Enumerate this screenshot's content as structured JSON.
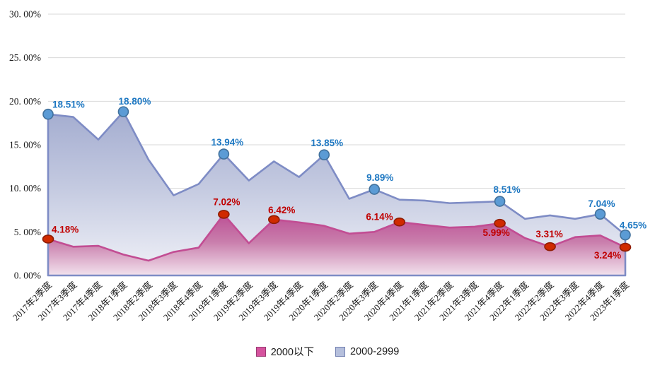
{
  "chart_data": {
    "type": "area",
    "categories": [
      "2017年2季度",
      "2017年3季度",
      "2017年4季度",
      "2018年1季度",
      "2018年2季度",
      "2018年3季度",
      "2018年4季度",
      "2019年1季度",
      "2019年2季度",
      "2019年3季度",
      "2019年4季度",
      "2020年1季度",
      "2020年2季度",
      "2020年3季度",
      "2020年4季度",
      "2021年1季度",
      "2021年2季度",
      "2021年3季度",
      "2021年4季度",
      "2022年1季度",
      "2022年2季度",
      "2022年3季度",
      "2022年4季度",
      "2023年1季度"
    ],
    "series": [
      {
        "name": "2000以下",
        "values": [
          4.18,
          3.3,
          3.4,
          2.4,
          1.7,
          2.7,
          3.2,
          7.02,
          3.7,
          6.42,
          6.1,
          5.7,
          4.8,
          5.0,
          6.14,
          5.8,
          5.5,
          5.6,
          5.99,
          4.3,
          3.31,
          4.4,
          4.6,
          3.24
        ],
        "line_color": "#c24d93",
        "fill_top": "#bc5095",
        "fill_mid": "#c97eac",
        "fill_bottom": "#f2e2ed",
        "marker_shape": "ellipse",
        "marker_fill": "#d02a00",
        "marker_stroke": "#8f1c00",
        "label_color": "#c00000",
        "swatch_fill": "#d5539e",
        "swatch_border": "#9b3b74",
        "labeled_points": [
          {
            "index": 0,
            "text": "4.18%",
            "dx": 5,
            "dy": -9,
            "anchor": "start"
          },
          {
            "index": 7,
            "text": "7.02%",
            "dx": 4,
            "dy": -13,
            "anchor": "middle"
          },
          {
            "index": 9,
            "text": "6.42%",
            "dx": 11,
            "dy": -9,
            "anchor": "middle"
          },
          {
            "index": 14,
            "text": "6.14%",
            "dx": -9,
            "dy": -3,
            "anchor": "end"
          },
          {
            "index": 18,
            "text": "5.99%",
            "dx": -5,
            "dy": 18,
            "anchor": "middle"
          },
          {
            "index": 20,
            "text": "3.31%",
            "dx": -1,
            "dy": -13,
            "anchor": "middle"
          },
          {
            "index": 23,
            "text": "3.24%",
            "dx": -25,
            "dy": 16,
            "anchor": "middle"
          }
        ]
      },
      {
        "name": "2000-2999",
        "values": [
          18.51,
          18.2,
          15.6,
          18.8,
          13.3,
          9.2,
          10.5,
          13.94,
          10.9,
          13.1,
          11.3,
          13.85,
          8.8,
          9.89,
          8.7,
          8.6,
          8.3,
          8.4,
          8.51,
          6.5,
          6.9,
          6.5,
          7.04,
          4.65
        ],
        "line_color": "#7e8cc5",
        "fill_top": "#a4add0",
        "fill_mid": "#c3c9e0",
        "fill_bottom": "#f1f2f8",
        "marker_shape": "circle",
        "marker_fill": "#5b9bd5",
        "marker_stroke": "#41719c",
        "label_color": "#1e78c2",
        "swatch_fill": "#b5bfdc",
        "swatch_border": "#7280b0",
        "labeled_points": [
          {
            "index": 0,
            "text": "18.51%",
            "dx": 6,
            "dy": -9,
            "anchor": "start"
          },
          {
            "index": 3,
            "text": "18.80%",
            "dx": 16,
            "dy": -10,
            "anchor": "middle"
          },
          {
            "index": 7,
            "text": "13.94%",
            "dx": 5,
            "dy": -12,
            "anchor": "middle"
          },
          {
            "index": 11,
            "text": "13.85%",
            "dx": 4,
            "dy": -12,
            "anchor": "middle"
          },
          {
            "index": 13,
            "text": "9.89%",
            "dx": 8,
            "dy": -12,
            "anchor": "middle"
          },
          {
            "index": 18,
            "text": "8.51%",
            "dx": 10,
            "dy": -12,
            "anchor": "middle"
          },
          {
            "index": 22,
            "text": "7.04%",
            "dx": 2,
            "dy": -10,
            "anchor": "middle"
          },
          {
            "index": 23,
            "text": "4.65%",
            "dx": 11,
            "dy": -9,
            "anchor": "middle"
          }
        ]
      }
    ],
    "y_ticks": [
      {
        "value": 30,
        "label": "30. 00%"
      },
      {
        "value": 25,
        "label": "25. 00%"
      },
      {
        "value": 20,
        "label": "20. 00%"
      },
      {
        "value": 15,
        "label": "15. 00%"
      },
      {
        "value": 10,
        "label": "10. 00%"
      },
      {
        "value": 5,
        "label": "5. 00%"
      },
      {
        "value": 0,
        "label": "0. 00%"
      }
    ],
    "ylim": [
      0,
      30
    ],
    "grid": true,
    "grid_color": "#d9d9d9",
    "tick_label_color": "#1a1a1a",
    "legend_position": "bottom"
  },
  "legend": {
    "items": [
      {
        "label": "2000以下"
      },
      {
        "label": "2000-2999"
      }
    ]
  }
}
